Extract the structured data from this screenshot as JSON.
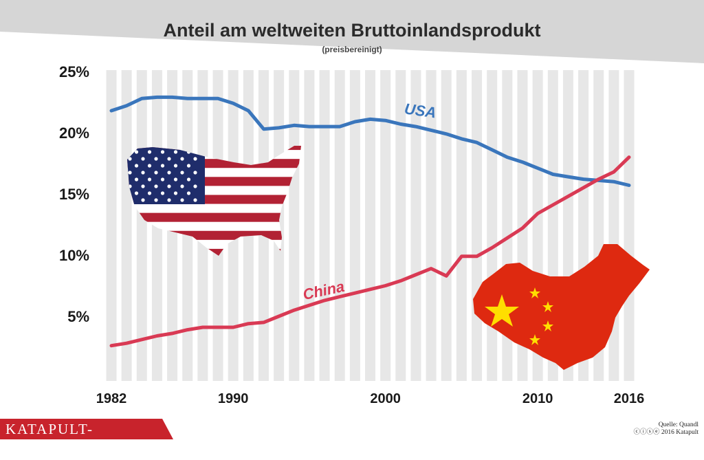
{
  "chart_data": {
    "type": "line",
    "title": "Anteil am weltweiten Bruttoinlandsprodukt",
    "subtitle": "(preisbereinigt)",
    "xlabel": "",
    "ylabel": "",
    "xlim": [
      1982,
      2016
    ],
    "ylim": [
      0,
      25
    ],
    "x_ticks": [
      1982,
      1990,
      2000,
      2010,
      2016
    ],
    "x_tick_labels": [
      "1982",
      "1990",
      "2000",
      "2010",
      "2016"
    ],
    "y_ticks": [
      5,
      10,
      15,
      20,
      25
    ],
    "y_tick_labels": [
      "5%",
      "10%",
      "15%",
      "20%",
      "25%"
    ],
    "x": [
      1982,
      1983,
      1984,
      1985,
      1986,
      1987,
      1988,
      1989,
      1990,
      1991,
      1992,
      1993,
      1994,
      1995,
      1996,
      1997,
      1998,
      1999,
      2000,
      2001,
      2002,
      2003,
      2004,
      2005,
      2006,
      2007,
      2008,
      2009,
      2010,
      2011,
      2012,
      2013,
      2014,
      2015,
      2016
    ],
    "series": [
      {
        "name": "USA",
        "color": "#3a76bc",
        "values": [
          21.8,
          22.2,
          22.8,
          22.9,
          22.9,
          22.8,
          22.8,
          22.8,
          22.4,
          21.8,
          20.3,
          20.4,
          20.6,
          20.5,
          20.5,
          20.5,
          20.9,
          21.1,
          21.0,
          20.7,
          20.5,
          20.2,
          19.9,
          19.5,
          19.2,
          18.6,
          18.0,
          17.6,
          17.1,
          16.6,
          16.4,
          16.2,
          16.1,
          16.0,
          15.7
        ]
      },
      {
        "name": "China",
        "color": "#d93a54",
        "values": [
          2.6,
          2.8,
          3.1,
          3.4,
          3.6,
          3.9,
          4.1,
          4.1,
          4.1,
          4.4,
          4.5,
          5.0,
          5.5,
          5.9,
          6.3,
          6.6,
          6.9,
          7.2,
          7.5,
          7.9,
          8.4,
          8.9,
          8.3,
          9.9,
          9.9,
          10.6,
          11.4,
          12.2,
          13.4,
          14.1,
          14.8,
          15.5,
          16.2,
          16.8,
          18.0
        ]
      }
    ],
    "annotations": [
      "USA",
      "China"
    ]
  },
  "footer": {
    "brand": "KATAPULT-MAGAZIN.de",
    "source_line1": "Quelle: Quandl",
    "source_line2": "ⓒⓘⓢⓔ 2016 Katapult"
  },
  "colors": {
    "header_band": "#d6d6d6",
    "stripe": "#e7e7e7",
    "usa_flag_red": "#b22234",
    "usa_flag_blue": "#1f2d6b",
    "china_flag_red": "#de2910",
    "china_flag_yellow": "#ffde00"
  }
}
